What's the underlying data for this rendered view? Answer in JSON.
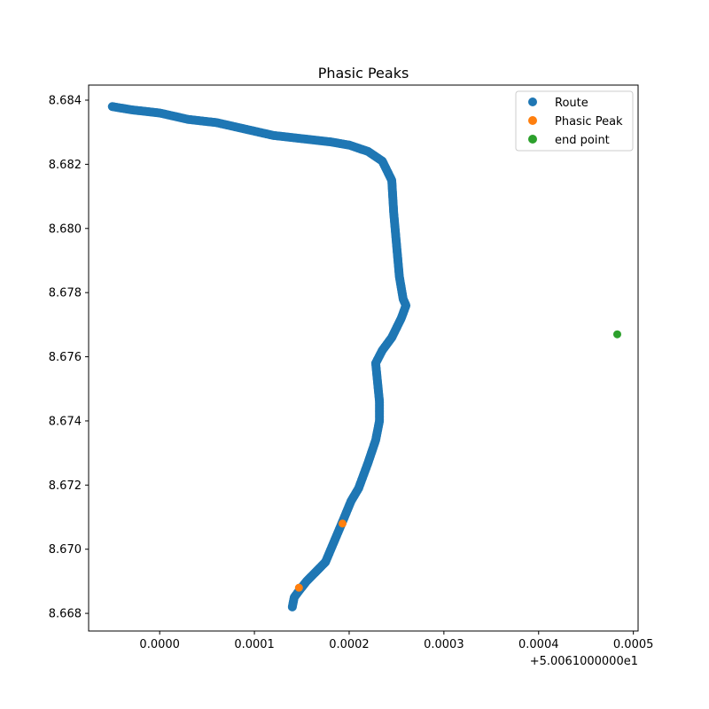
{
  "chart_data": {
    "type": "scatter",
    "title": "Phasic Peaks",
    "xlabel": "",
    "ylabel": "",
    "x_offset_label": "+5.0061000000e1",
    "xlim": [
      -7.5e-05,
      0.000505
    ],
    "ylim": [
      8.66745,
      8.68447
    ],
    "x_ticks": [
      0.0,
      0.0001,
      0.0002,
      0.0003,
      0.0004,
      0.0005
    ],
    "x_tick_labels": [
      "0.0000",
      "0.0001",
      "0.0002",
      "0.0003",
      "0.0004",
      "0.0005"
    ],
    "y_ticks": [
      8.668,
      8.67,
      8.672,
      8.674,
      8.676,
      8.678,
      8.68,
      8.682,
      8.684
    ],
    "y_tick_labels": [
      "8.668",
      "8.670",
      "8.672",
      "8.674",
      "8.676",
      "8.678",
      "8.680",
      "8.682",
      "8.684"
    ],
    "grid": false,
    "legend_position": "top-right",
    "series": [
      {
        "name": "Route",
        "color": "#1f77b4",
        "x": [
          -5e-05,
          -3e-05,
          0.0,
          3e-05,
          6e-05,
          9e-05,
          0.00012,
          0.00015,
          0.00018,
          0.0002,
          0.00022,
          0.000235,
          0.000245,
          0.000247,
          0.00025,
          0.000253,
          0.000257,
          0.00026,
          0.000255,
          0.000245,
          0.000235,
          0.000228,
          0.00023,
          0.000232,
          0.000232,
          0.000228,
          0.00022,
          0.00021,
          0.000202,
          0.000195,
          0.000185,
          0.000175,
          0.000165,
          0.000155,
          0.000147,
          0.000142,
          0.00014
        ],
        "y": [
          8.6838,
          8.6837,
          8.6836,
          8.6834,
          8.6833,
          8.6831,
          8.6829,
          8.6828,
          8.6827,
          8.6826,
          8.6824,
          8.6821,
          8.6815,
          8.6805,
          8.6795,
          8.6785,
          8.6778,
          8.6776,
          8.6772,
          8.6766,
          8.6762,
          8.6758,
          8.6752,
          8.6746,
          8.674,
          8.6734,
          8.6727,
          8.6719,
          8.6715,
          8.671,
          8.6703,
          8.6696,
          8.6693,
          8.669,
          8.6687,
          8.6685,
          8.6682
        ]
      },
      {
        "name": "Phasic Peak",
        "color": "#ff7f0e",
        "x": [
          0.000147,
          0.000193
        ],
        "y": [
          8.6688,
          8.6708
        ]
      },
      {
        "name": "end point",
        "color": "#2ca02c",
        "x": [
          0.000483
        ],
        "y": [
          8.6767
        ]
      }
    ]
  }
}
